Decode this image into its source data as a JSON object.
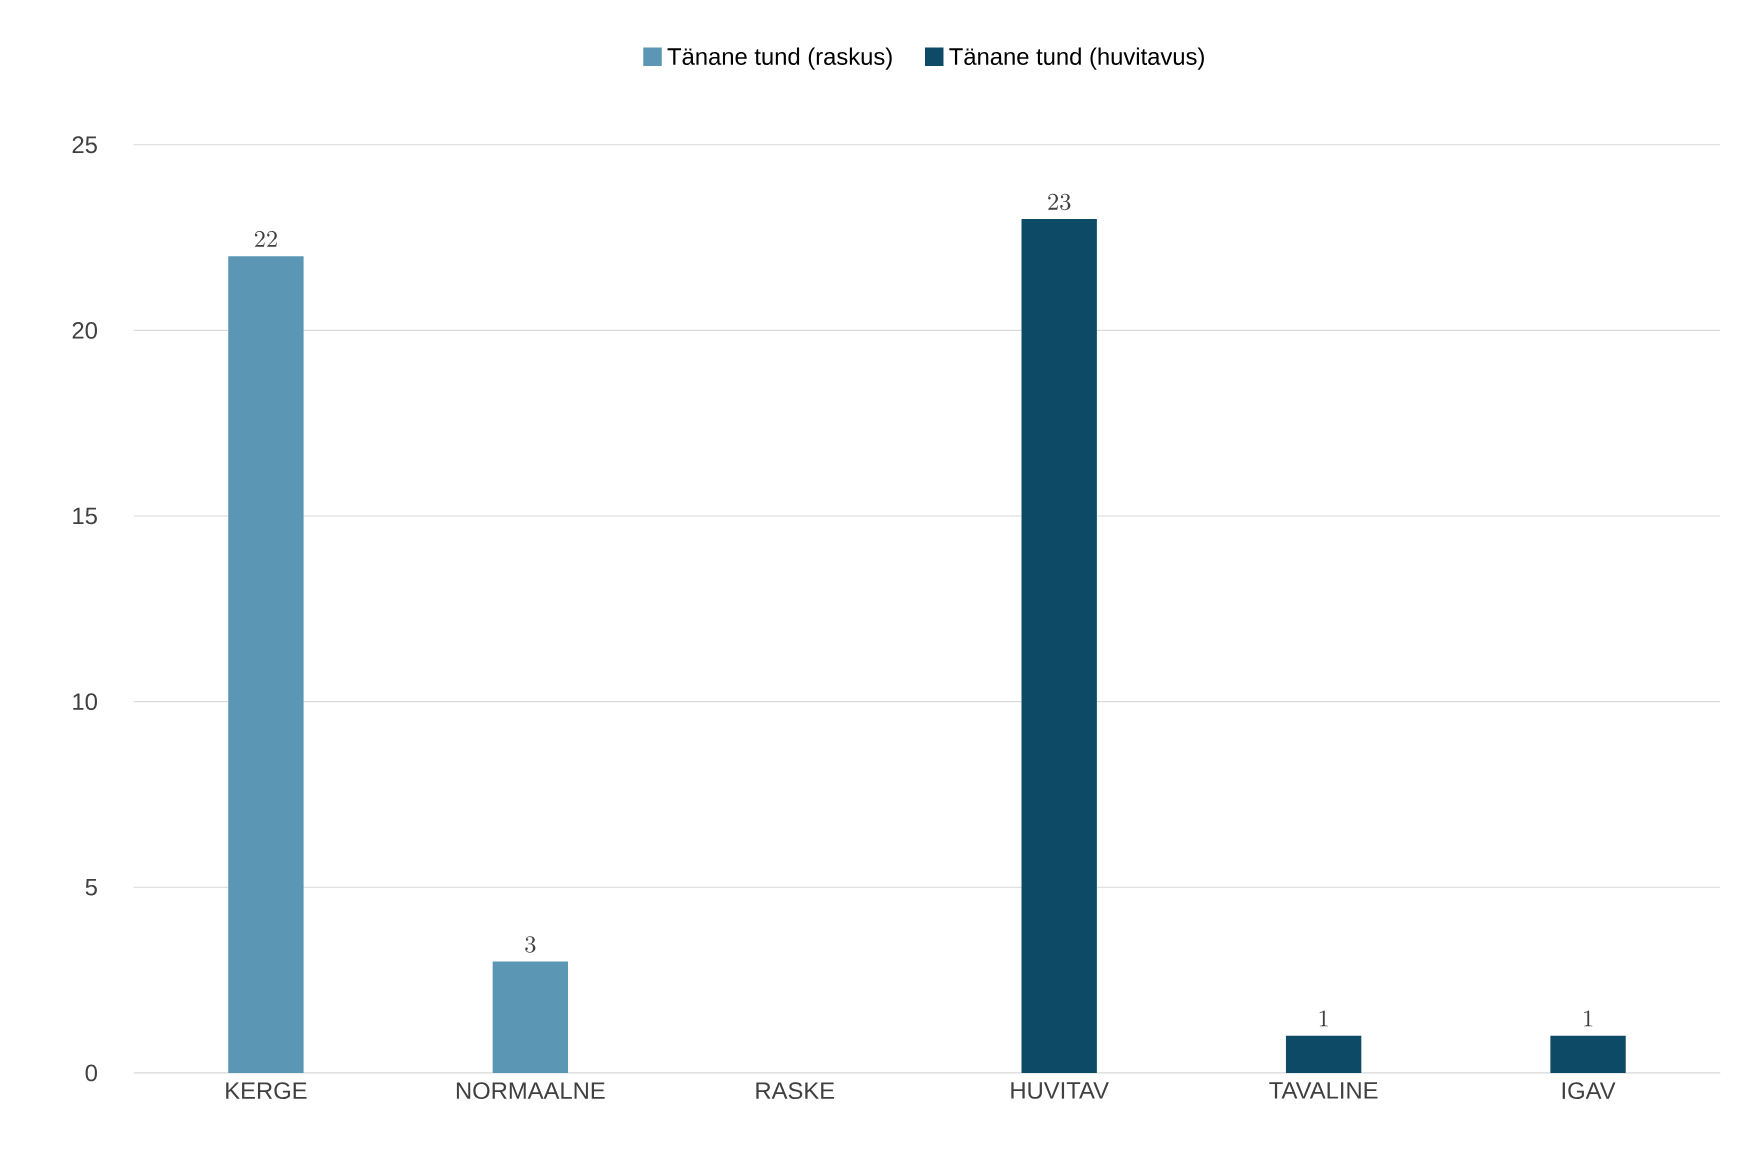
{
  "chart_data": {
    "type": "bar",
    "categories": [
      "KERGE",
      "NORMAALNE",
      "RASKE",
      "HUVITAV",
      "TAVALINE",
      "IGAV"
    ],
    "series": [
      {
        "name": "Tänane tund (raskus)",
        "color": "#5b97b4",
        "values": [
          22,
          3,
          null,
          null,
          null,
          null
        ]
      },
      {
        "name": "Tänane tund (huvitavus)",
        "color": "#0d4a66",
        "values": [
          null,
          null,
          null,
          23,
          1,
          1
        ]
      }
    ],
    "ylim": [
      0,
      25
    ],
    "yticks": [
      0,
      5,
      10,
      15,
      20,
      25
    ],
    "grid": "y",
    "legend": "top",
    "data_labels": true
  }
}
